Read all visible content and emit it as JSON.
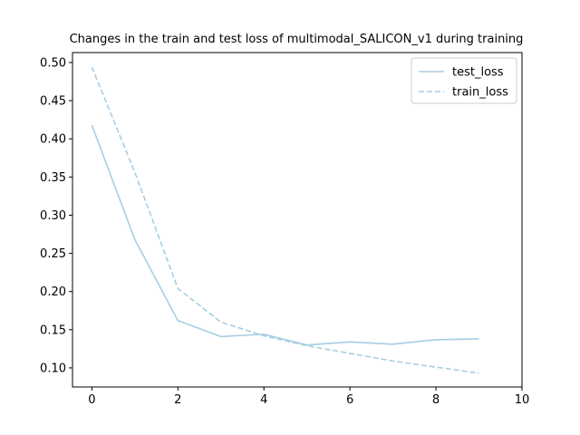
{
  "chart_data": {
    "type": "line",
    "title": "Changes in the train and test loss of multimodal_SALICON_v1 during training",
    "xlabel": "",
    "ylabel": "",
    "x": [
      0,
      1,
      2,
      3,
      4,
      5,
      6,
      7,
      8,
      9
    ],
    "xlim": [
      -0.45,
      10.0
    ],
    "ylim": [
      0.075,
      0.513
    ],
    "xticks": [
      0,
      2,
      4,
      6,
      8,
      10
    ],
    "xtick_labels": [
      "0",
      "2",
      "4",
      "6",
      "8",
      "10"
    ],
    "yticks": [
      0.1,
      0.15,
      0.2,
      0.25,
      0.3,
      0.35,
      0.4,
      0.45,
      0.5
    ],
    "ytick_labels": [
      "0.10",
      "0.15",
      "0.20",
      "0.25",
      "0.30",
      "0.35",
      "0.40",
      "0.45",
      "0.50"
    ],
    "grid": false,
    "legend_position": "top-right",
    "series": [
      {
        "name": "test_loss",
        "style": "solid",
        "color": "#a6cee3",
        "values": [
          0.418,
          0.268,
          0.162,
          0.141,
          0.144,
          0.13,
          0.134,
          0.131,
          0.137,
          0.138
        ]
      },
      {
        "name": "train_loss",
        "style": "dashed",
        "color": "#a6cee3",
        "values": [
          0.494,
          0.356,
          0.204,
          0.16,
          0.142,
          0.129,
          0.119,
          0.109,
          0.101,
          0.093
        ]
      }
    ]
  }
}
